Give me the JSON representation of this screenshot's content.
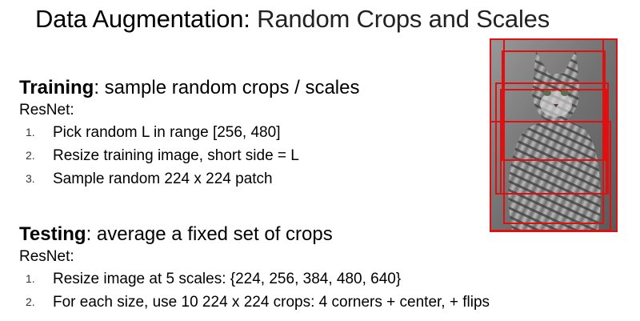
{
  "title": {
    "main": "Data Augmentation",
    "sep": ":",
    "sub": " Random Crops and Scales"
  },
  "training": {
    "heading_bold": "Training",
    "heading_rest": ": sample random crops / scales",
    "model": "ResNet:",
    "items": [
      {
        "num": "1.",
        "text": "Pick random L in range [256, 480]"
      },
      {
        "num": "2.",
        "text": "Resize training image, short side = L"
      },
      {
        "num": "3.",
        "text": "Sample random 224 x 224 patch"
      }
    ]
  },
  "testing": {
    "heading_bold": "Testing",
    "heading_rest": ": average a fixed set of crops",
    "model": "ResNet:",
    "items": [
      {
        "num": "1.",
        "text": "Resize image at 5 scales:  {224, 256, 384, 480, 640}"
      },
      {
        "num": "2.",
        "text": "For each size, use 10 224 x 224 crops: 4 corners + center, + flips"
      }
    ]
  },
  "colors": {
    "crop_box": "#e01010",
    "cat_dark": "#3a3a3a",
    "cat_light": "#b8b8b8",
    "background": "#8a8a8a"
  },
  "image": {
    "subject": "tabby cat photo",
    "icon": "cat-photo"
  }
}
